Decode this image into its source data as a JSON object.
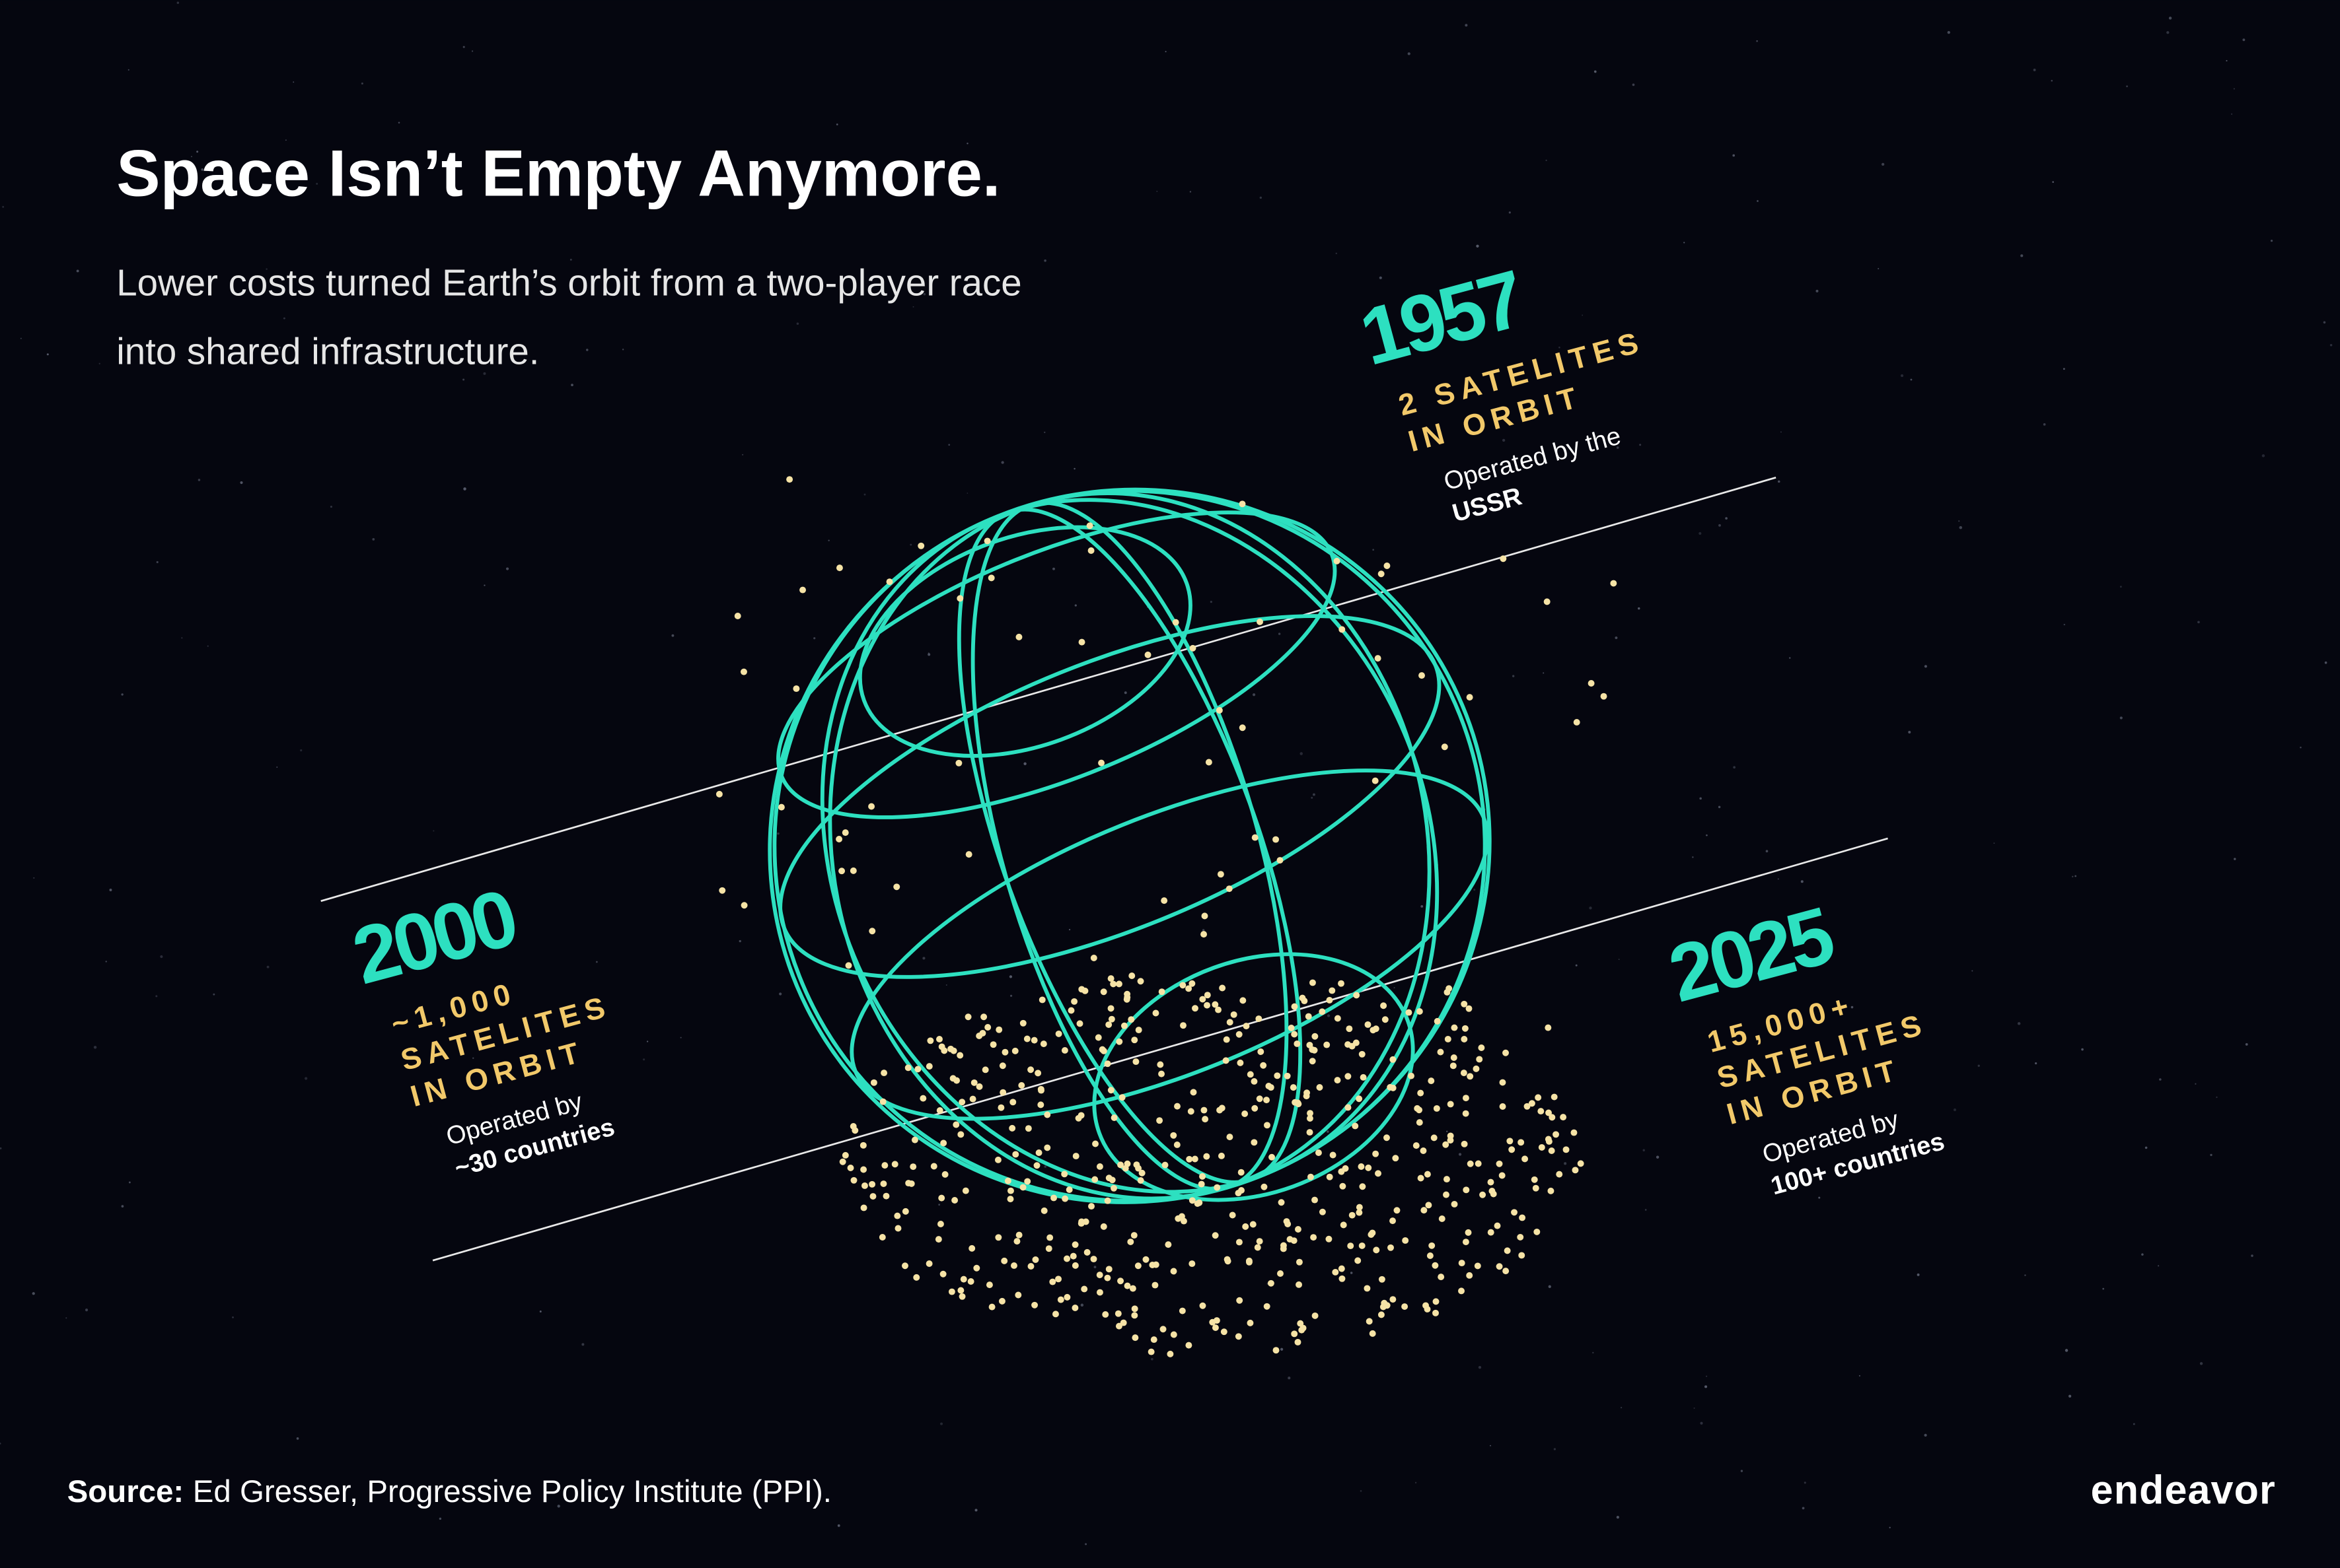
{
  "title": "Space Isn’t Empty Anymore.",
  "subtitle": [
    "Lower costs turned Earth’s orbit from a two-player race",
    "into shared infrastructure."
  ],
  "milestones": [
    {
      "year": "1957",
      "satellites": [
        "2 SATELITES",
        "IN ORBIT"
      ],
      "operated_by": "Operated by the",
      "operator": "USSR"
    },
    {
      "year": "2000",
      "satellites": [
        "~1,000",
        "SATELITES",
        "IN ORBIT"
      ],
      "operated_by": "Operated by",
      "operator": "~30 countries"
    },
    {
      "year": "2025",
      "satellites": [
        "15,000+",
        "SATELITES",
        "IN ORBIT"
      ],
      "operated_by": "Operated by",
      "operator": "100+ countries"
    }
  ],
  "source": {
    "label": "Source:",
    "text": "Ed Gresser, Progressive Policy Institute (PPI)."
  },
  "logo": "endeavor"
}
